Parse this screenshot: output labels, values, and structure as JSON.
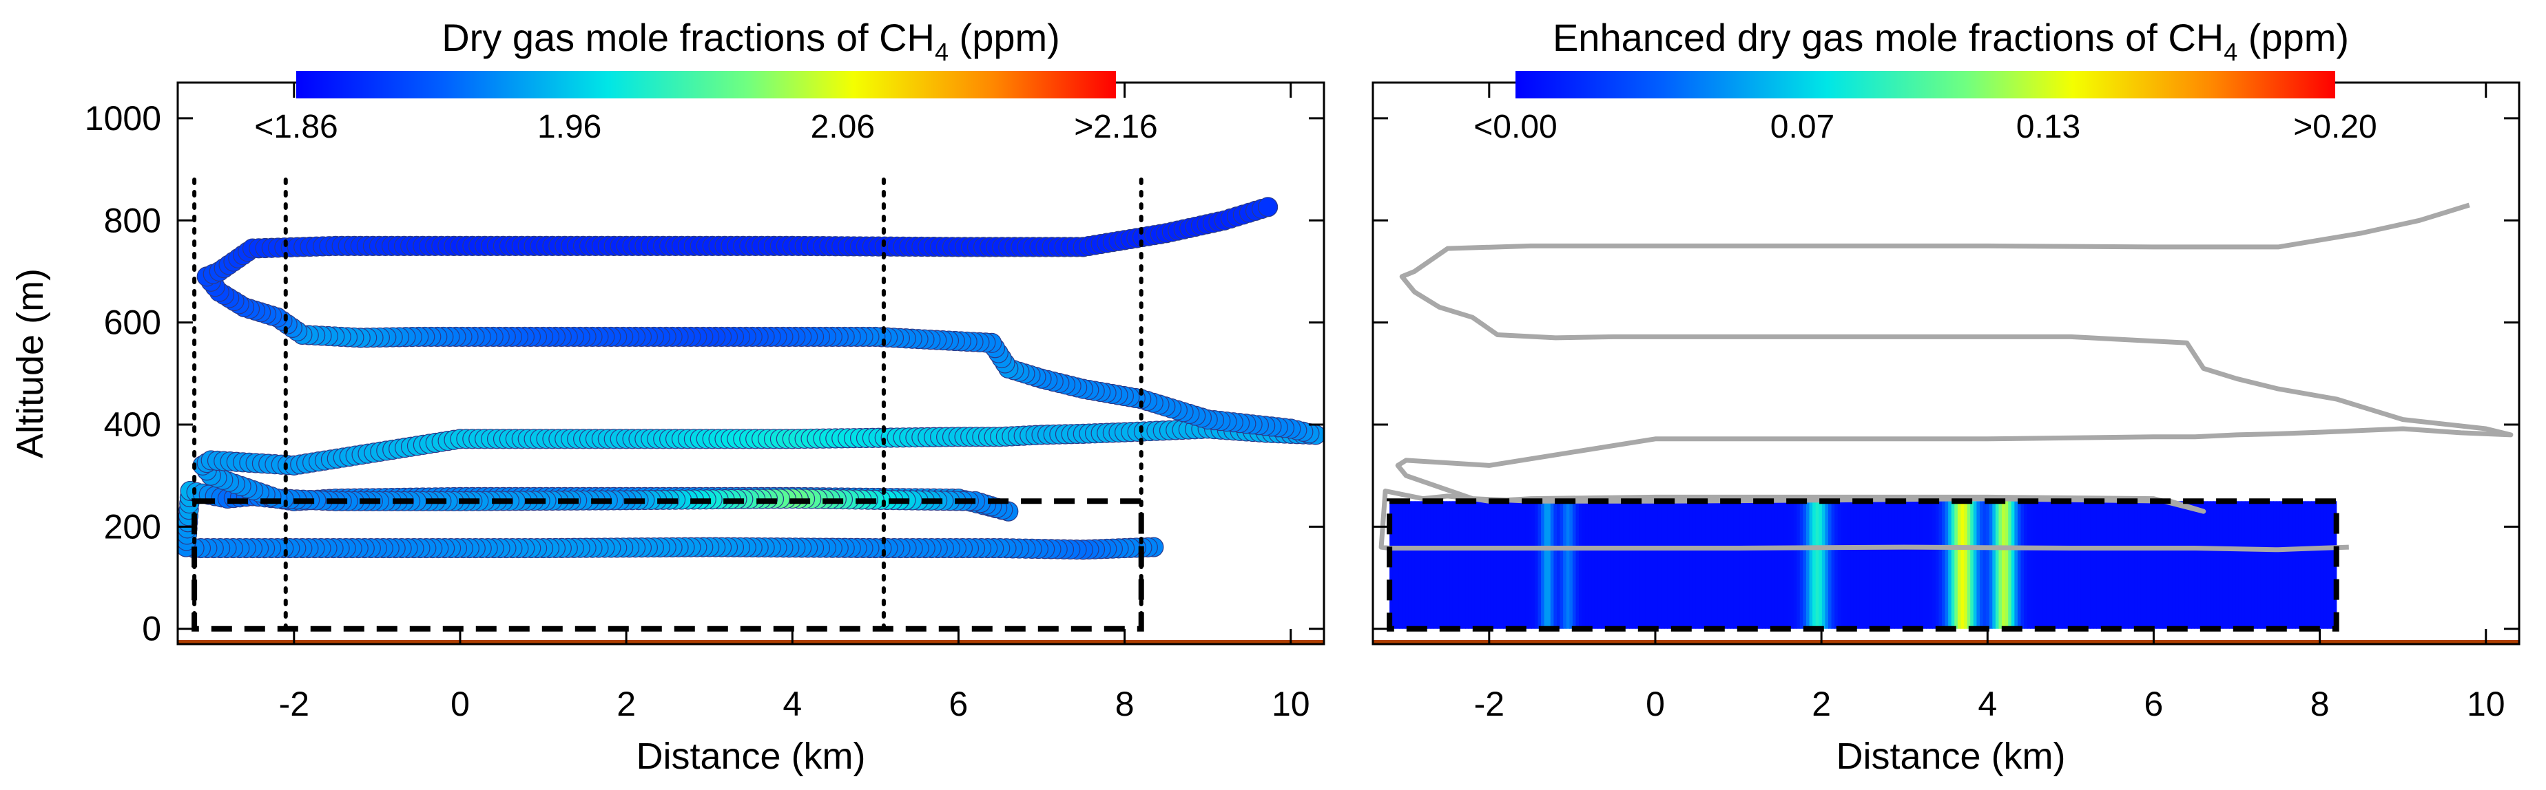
{
  "chart_data": [
    {
      "type": "scatter",
      "panel": "left",
      "title": "Dry gas mole fractions of CH",
      "title_sub": "4",
      "title_unit": " (ppm)",
      "xlabel": "Distance (km)",
      "ylabel": "Altitude (m)",
      "xlim": [
        -3.4,
        10.4
      ],
      "ylim": [
        -30,
        1070
      ],
      "xticks": [
        -2,
        0,
        2,
        4,
        6,
        8,
        10
      ],
      "yticks": [
        0,
        200,
        400,
        600,
        800,
        1000
      ],
      "colorbar": {
        "range": [
          1.86,
          2.16
        ],
        "ticks": [
          {
            "value": 1.86,
            "label": "<1.86"
          },
          {
            "value": 1.96,
            "label": "1.96"
          },
          {
            "value": 2.06,
            "label": "2.06"
          },
          {
            "value": 2.16,
            "label": ">2.16"
          }
        ]
      },
      "vlines": [
        -3.2,
        -2.1,
        5.1,
        8.2
      ],
      "vline_top": 880,
      "box": {
        "x": [
          -3.2,
          8.2
        ],
        "y": [
          0,
          250
        ]
      },
      "track": {
        "x": [
          8.35,
          8.0,
          7.5,
          6.5,
          5,
          3,
          1,
          -1,
          -2.5,
          -3.2,
          -3.3,
          -3.25,
          -2.8,
          -2.5,
          -2.2,
          -2.0,
          -1.5,
          0,
          2,
          4,
          6,
          6.6,
          6.2,
          4,
          2,
          0,
          -1.5,
          -2.2,
          -3.0,
          -3.1,
          -3.0,
          -2.0,
          0,
          2,
          4,
          6,
          6.5,
          7.0,
          7.5,
          8.0,
          9.0,
          9.7,
          10.3,
          10.0,
          9.0,
          8.2,
          7.5,
          7.0,
          6.6,
          6.4,
          5,
          3,
          1,
          -0.5,
          -1.2,
          -1.9,
          -2.2,
          -2.6,
          -2.9,
          -3.05,
          -2.9,
          -2.5,
          -1.5,
          0,
          2,
          4,
          6,
          7.5,
          8.5,
          9.2,
          9.8
        ],
        "y": [
          160,
          158,
          155,
          158,
          158,
          160,
          158,
          158,
          158,
          158,
          160,
          270,
          255,
          260,
          255,
          250,
          255,
          258,
          258,
          258,
          255,
          230,
          250,
          255,
          252,
          250,
          250,
          255,
          300,
          320,
          330,
          320,
          372,
          372,
          372,
          376,
          376,
          380,
          382,
          385,
          392,
          384,
          380,
          392,
          410,
          450,
          470,
          490,
          510,
          560,
          572,
          572,
          572,
          572,
          570,
          576,
          610,
          630,
          660,
          690,
          700,
          745,
          750,
          750,
          750,
          750,
          748,
          748,
          775,
          800,
          830
        ],
        "values": [
          1.93,
          1.93,
          1.92,
          1.93,
          1.93,
          1.94,
          1.94,
          1.93,
          1.93,
          1.93,
          1.93,
          1.95,
          1.92,
          1.92,
          1.93,
          1.93,
          1.93,
          1.93,
          1.93,
          1.94,
          1.94,
          1.93,
          1.93,
          2.02,
          1.94,
          1.94,
          1.93,
          1.93,
          1.94,
          1.94,
          1.94,
          1.94,
          1.96,
          1.96,
          1.98,
          1.96,
          1.96,
          1.95,
          1.95,
          1.95,
          1.95,
          1.95,
          1.94,
          1.93,
          1.93,
          1.93,
          1.93,
          1.93,
          1.94,
          1.93,
          1.93,
          1.9,
          1.91,
          1.93,
          1.94,
          1.94,
          1.92,
          1.91,
          1.9,
          1.9,
          1.9,
          1.89,
          1.89,
          1.88,
          1.88,
          1.88,
          1.88,
          1.88,
          1.88,
          1.88,
          1.89
        ]
      }
    },
    {
      "type": "heatmap",
      "panel": "right",
      "title": "Enhanced dry gas mole fractions of CH",
      "title_sub": "4",
      "title_unit": " (ppm)",
      "xlabel": "Distance (km)",
      "ylabel": "",
      "xlim": [
        -3.4,
        10.4
      ],
      "ylim": [
        -30,
        1070
      ],
      "xticks": [
        -2,
        0,
        2,
        4,
        6,
        8,
        10
      ],
      "colorbar": {
        "range": [
          0.0,
          0.2
        ],
        "ticks": [
          {
            "value": 0.0,
            "label": "<0.00"
          },
          {
            "value": 0.07,
            "label": "0.07"
          },
          {
            "value": 0.13,
            "label": "0.13"
          },
          {
            "value": 0.2,
            "label": ">0.20"
          }
        ]
      },
      "box": {
        "x": [
          -3.2,
          8.2
        ],
        "y": [
          0,
          250
        ]
      },
      "field": {
        "x": [
          -3.2,
          8.2
        ],
        "y": [
          0,
          250
        ],
        "base": 0.005
      },
      "plumes": [
        {
          "x": -1.3,
          "width": 0.06,
          "peak": 0.05
        },
        {
          "x": -1.05,
          "width": 0.06,
          "peak": 0.04
        },
        {
          "x": 1.95,
          "width": 0.1,
          "peak": 0.08
        },
        {
          "x": 3.7,
          "width": 0.12,
          "peak": 0.13
        },
        {
          "x": 4.2,
          "width": 0.1,
          "peak": 0.12
        }
      ]
    }
  ]
}
